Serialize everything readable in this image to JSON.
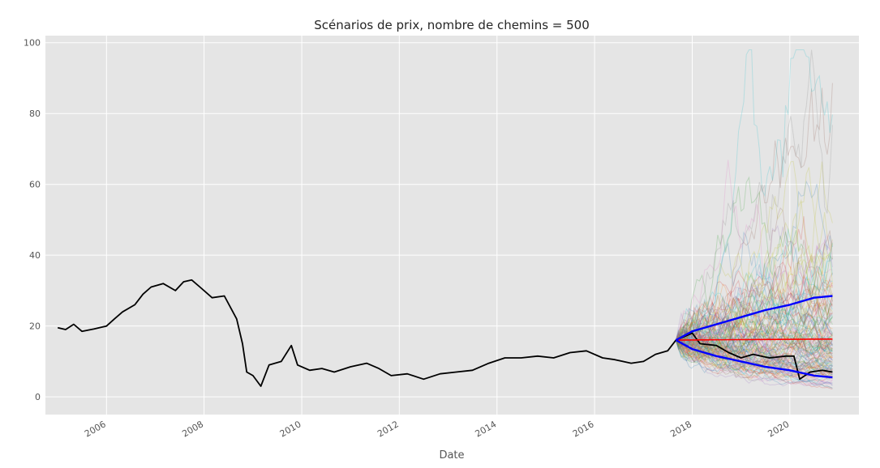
{
  "chart_data": {
    "type": "line",
    "title": "Scénarios de prix, nombre de chemins = 500",
    "xlabel": "Date",
    "ylabel": "",
    "x_range": [
      "2004-10-01",
      "2021-06-01"
    ],
    "ylim": [
      -5,
      102
    ],
    "y_ticks": [
      0,
      20,
      40,
      60,
      80,
      100
    ],
    "y_tick_labels": [
      "0",
      "20",
      "40",
      "60",
      "80",
      "100"
    ],
    "x_ticks": [
      "2006-01-01",
      "2008-01-01",
      "2010-01-01",
      "2012-01-01",
      "2014-01-01",
      "2016-01-01",
      "2018-01-01",
      "2020-01-01"
    ],
    "x_tick_labels": [
      "2006",
      "2008",
      "2010",
      "2012",
      "2014",
      "2016",
      "2018",
      "2020"
    ],
    "grid": true,
    "background": "#e5e5e5",
    "grid_color": "#ffffff",
    "simulation": {
      "n_paths": 500,
      "start_date": "2017-09-01",
      "end_date": "2020-11-15",
      "start_value": 16,
      "max_value_shown": 98
    },
    "series": [
      {
        "color": "#000000",
        "points": [
          [
            "2005-01-01",
            19.5
          ],
          [
            "2005-03-01",
            19.0
          ],
          [
            "2005-05-01",
            20.5
          ],
          [
            "2005-07-01",
            18.5
          ],
          [
            "2005-10-01",
            19.2
          ],
          [
            "2006-01-01",
            20.0
          ],
          [
            "2006-03-01",
            22.0
          ],
          [
            "2006-05-01",
            24.0
          ],
          [
            "2006-08-01",
            26.0
          ],
          [
            "2006-10-01",
            29.0
          ],
          [
            "2006-12-01",
            31.0
          ],
          [
            "2007-03-01",
            32.0
          ],
          [
            "2007-06-01",
            30.0
          ],
          [
            "2007-08-01",
            32.5
          ],
          [
            "2007-10-01",
            33.0
          ],
          [
            "2007-12-01",
            31.0
          ],
          [
            "2008-03-01",
            28.0
          ],
          [
            "2008-06-01",
            28.5
          ],
          [
            "2008-09-01",
            22.0
          ],
          [
            "2008-10-15",
            15.0
          ],
          [
            "2008-11-15",
            7.0
          ],
          [
            "2009-01-01",
            6.0
          ],
          [
            "2009-03-01",
            3.0
          ],
          [
            "2009-05-01",
            9.0
          ],
          [
            "2009-08-01",
            10.0
          ],
          [
            "2009-10-15",
            14.5
          ],
          [
            "2009-12-01",
            9.0
          ],
          [
            "2010-03-01",
            7.5
          ],
          [
            "2010-06-01",
            8.0
          ],
          [
            "2010-09-01",
            7.0
          ],
          [
            "2011-01-01",
            8.5
          ],
          [
            "2011-05-01",
            9.5
          ],
          [
            "2011-08-01",
            8.0
          ],
          [
            "2011-11-01",
            6.0
          ],
          [
            "2012-03-01",
            6.5
          ],
          [
            "2012-07-01",
            5.0
          ],
          [
            "2012-11-01",
            6.5
          ],
          [
            "2013-03-01",
            7.0
          ],
          [
            "2013-07-01",
            7.5
          ],
          [
            "2013-11-01",
            9.5
          ],
          [
            "2014-03-01",
            11.0
          ],
          [
            "2014-07-01",
            11.0
          ],
          [
            "2014-11-01",
            11.5
          ],
          [
            "2015-03-01",
            11.0
          ],
          [
            "2015-07-01",
            12.5
          ],
          [
            "2015-11-01",
            13.0
          ],
          [
            "2016-03-01",
            11.0
          ],
          [
            "2016-06-01",
            10.5
          ],
          [
            "2016-10-01",
            9.5
          ],
          [
            "2017-01-01",
            10.0
          ],
          [
            "2017-04-01",
            12.0
          ],
          [
            "2017-07-01",
            13.0
          ],
          [
            "2017-09-01",
            16.0
          ],
          [
            "2017-11-01",
            17.0
          ],
          [
            "2018-01-01",
            18.0
          ],
          [
            "2018-03-01",
            15.0
          ],
          [
            "2018-07-01",
            14.5
          ],
          [
            "2018-10-01",
            12.5
          ],
          [
            "2019-01-01",
            11.0
          ],
          [
            "2019-04-01",
            12.0
          ],
          [
            "2019-08-01",
            11.0
          ],
          [
            "2019-12-01",
            11.5
          ],
          [
            "2020-02-01",
            11.5
          ],
          [
            "2020-03-15",
            5.0
          ],
          [
            "2020-06-01",
            7.0
          ],
          [
            "2020-09-01",
            7.5
          ],
          [
            "2020-11-15",
            7.0
          ]
        ]
      },
      {
        "color": "#ff0000",
        "points": [
          [
            "2017-09-01",
            16.0
          ],
          [
            "2018-06-01",
            16.1
          ],
          [
            "2019-06-01",
            16.2
          ],
          [
            "2020-11-15",
            16.3
          ]
        ]
      },
      {
        "color": "#0000ff",
        "points": [
          [
            "2017-09-01",
            16.0
          ],
          [
            "2018-01-01",
            18.5
          ],
          [
            "2018-07-01",
            20.5
          ],
          [
            "2019-01-01",
            22.5
          ],
          [
            "2019-07-01",
            24.5
          ],
          [
            "2020-01-01",
            26.0
          ],
          [
            "2020-07-01",
            28.0
          ],
          [
            "2020-11-15",
            28.5
          ]
        ]
      },
      {
        "color": "#0000ff",
        "points": [
          [
            "2017-09-01",
            16.0
          ],
          [
            "2018-01-01",
            13.5
          ],
          [
            "2018-07-01",
            11.5
          ],
          [
            "2019-01-01",
            10.0
          ],
          [
            "2019-07-01",
            8.5
          ],
          [
            "2020-01-01",
            7.5
          ],
          [
            "2020-07-01",
            6.0
          ],
          [
            "2020-11-15",
            5.5
          ]
        ]
      }
    ]
  }
}
